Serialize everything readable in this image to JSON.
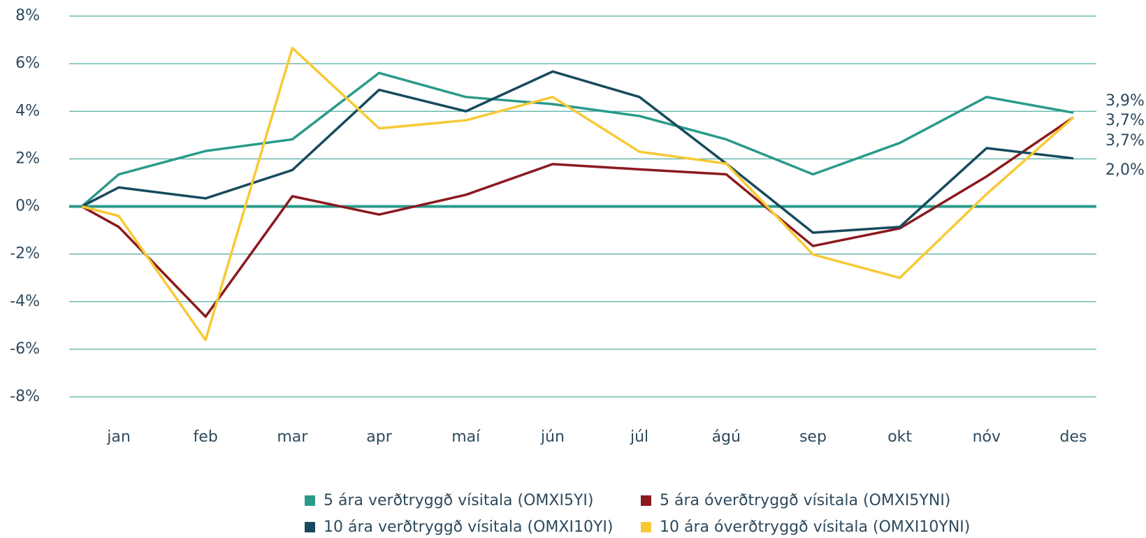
{
  "chart_data": {
    "type": "line",
    "categories": [
      null,
      "jan",
      "feb",
      "mar",
      "apr",
      "maí",
      "jún",
      "júl",
      "ágú",
      "sep",
      "okt",
      "nóv",
      "des"
    ],
    "series": [
      {
        "name": "5 ára verðtryggð vísitala (OMXI5YI)",
        "color": "#2a9a8a",
        "values": [
          0,
          1.35,
          2.33,
          2.82,
          5.61,
          4.6,
          4.3,
          3.8,
          2.82,
          1.35,
          2.67,
          4.6,
          3.94
        ],
        "end_label": "3,9%"
      },
      {
        "name": "5 ára óverðtryggð vísitala (OMXI5YNI)",
        "color": "#8b1a1e",
        "values": [
          0,
          -0.86,
          -4.63,
          0.43,
          -0.34,
          0.49,
          1.78,
          1.56,
          1.35,
          -1.66,
          -0.92,
          1.26,
          3.74
        ],
        "end_label": "3,7%"
      },
      {
        "name": "10 ára verðtryggð vísitala (OMXI10YI)",
        "color": "#174a5c",
        "values": [
          0,
          0.8,
          0.34,
          1.53,
          4.9,
          4.0,
          5.67,
          4.6,
          1.8,
          -1.1,
          -0.86,
          2.45,
          2.02
        ],
        "end_label": "2,0%"
      },
      {
        "name": "10 ára óverðtryggð vísitala (OMXI10YNI)",
        "color": "#f7c934",
        "values": [
          0,
          -0.4,
          -5.61,
          6.66,
          3.28,
          3.62,
          4.6,
          2.3,
          1.8,
          -2.02,
          -3.0,
          0.52,
          3.74
        ],
        "end_label": "3,7%"
      }
    ],
    "ylim": [
      -8,
      8
    ],
    "yticks": [
      {
        "value": -8,
        "label": "-8%"
      },
      {
        "value": -6,
        "label": "-6%"
      },
      {
        "value": -4,
        "label": "-4%"
      },
      {
        "value": -2,
        "label": "-2%"
      },
      {
        "value": 0,
        "label": "0%"
      },
      {
        "value": 2,
        "label": "2%"
      },
      {
        "value": 4,
        "label": "4%"
      },
      {
        "value": 6,
        "label": "6%"
      },
      {
        "value": 8,
        "label": "8%"
      }
    ],
    "grid": true
  }
}
